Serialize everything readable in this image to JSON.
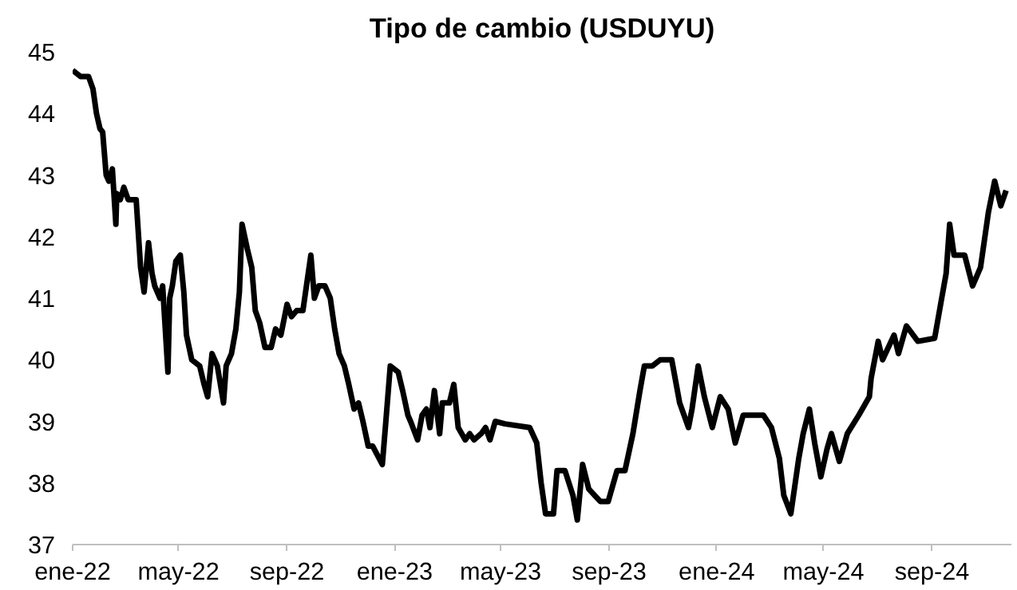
{
  "chart_data": {
    "type": "line",
    "title": "Tipo de cambio (USDUYU)",
    "x": [
      "2022-01-01",
      "2022-01-10",
      "2022-01-19",
      "2022-01-24",
      "2022-01-28",
      "2022-02-01",
      "2022-02-04",
      "2022-02-08",
      "2022-02-11",
      "2022-02-15",
      "2022-02-19",
      "2022-02-20",
      "2022-02-24",
      "2022-02-28",
      "2022-03-05",
      "2022-03-14",
      "2022-03-19",
      "2022-03-23",
      "2022-03-28",
      "2022-04-01",
      "2022-04-04",
      "2022-04-10",
      "2022-04-13",
      "2022-04-19",
      "2022-04-21",
      "2022-04-24",
      "2022-04-28",
      "2022-05-03",
      "2022-05-07",
      "2022-05-10",
      "2022-05-16",
      "2022-05-25",
      "2022-05-30",
      "2022-06-03",
      "2022-06-08",
      "2022-06-14",
      "2022-06-21",
      "2022-06-24",
      "2022-06-30",
      "2022-07-05",
      "2022-07-09",
      "2022-07-12",
      "2022-07-18",
      "2022-07-23",
      "2022-07-27",
      "2022-08-01",
      "2022-08-07",
      "2022-08-14",
      "2022-08-19",
      "2022-08-25",
      "2022-09-01",
      "2022-09-06",
      "2022-09-12",
      "2022-09-19",
      "2022-09-24",
      "2022-09-28",
      "2022-10-02",
      "2022-10-07",
      "2022-10-14",
      "2022-10-20",
      "2022-10-25",
      "2022-10-30",
      "2022-11-05",
      "2022-11-10",
      "2022-11-16",
      "2022-11-21",
      "2022-11-26",
      "2022-12-02",
      "2022-12-07",
      "2022-12-18",
      "2022-12-22",
      "2022-12-27",
      "2023-01-05",
      "2023-01-10",
      "2023-01-16",
      "2023-01-19",
      "2023-01-27",
      "2023-02-01",
      "2023-02-06",
      "2023-02-10",
      "2023-02-15",
      "2023-02-21",
      "2023-02-24",
      "2023-03-04",
      "2023-03-09",
      "2023-03-14",
      "2023-03-22",
      "2023-03-27",
      "2023-04-01",
      "2023-04-09",
      "2023-04-14",
      "2023-04-19",
      "2023-04-25",
      "2023-05-06",
      "2023-06-03",
      "2023-06-11",
      "2023-06-16",
      "2023-06-21",
      "2023-06-30",
      "2023-07-04",
      "2023-07-13",
      "2023-07-22",
      "2023-07-27",
      "2023-08-02",
      "2023-08-09",
      "2023-08-22",
      "2023-08-31",
      "2023-09-10",
      "2023-09-19",
      "2023-09-28",
      "2023-10-06",
      "2023-10-11",
      "2023-10-20",
      "2023-10-29",
      "2023-11-11",
      "2023-11-20",
      "2023-11-30",
      "2023-12-04",
      "2023-12-11",
      "2023-12-18",
      "2023-12-27",
      "2024-01-05",
      "2024-01-14",
      "2024-01-22",
      "2024-01-31",
      "2024-02-10",
      "2024-02-23",
      "2024-03-03",
      "2024-03-12",
      "2024-03-17",
      "2024-03-25",
      "2024-04-03",
      "2024-04-08",
      "2024-04-15",
      "2024-04-21",
      "2024-04-28",
      "2024-05-05",
      "2024-05-10",
      "2024-05-19",
      "2024-05-28",
      "2024-06-10",
      "2024-06-22",
      "2024-06-24",
      "2024-07-02",
      "2024-07-07",
      "2024-07-20",
      "2024-07-25",
      "2024-08-03",
      "2024-08-16",
      "2024-09-04",
      "2024-09-12",
      "2024-09-17",
      "2024-09-21",
      "2024-09-26",
      "2024-10-08",
      "2024-10-17",
      "2024-10-26",
      "2024-11-04",
      "2024-11-11",
      "2024-11-18",
      "2024-11-24"
    ],
    "series": [
      {
        "color": "#000000",
        "values": [
          44.7,
          44.6,
          44.6,
          44.4,
          44.0,
          43.75,
          43.7,
          43.0,
          42.9,
          43.1,
          42.2,
          42.7,
          42.6,
          42.8,
          42.6,
          42.6,
          41.5,
          41.1,
          41.9,
          41.4,
          41.2,
          41.0,
          41.2,
          39.8,
          41.0,
          41.2,
          41.6,
          41.7,
          41.1,
          40.4,
          40.0,
          39.9,
          39.6,
          39.4,
          40.1,
          39.9,
          39.3,
          39.9,
          40.1,
          40.5,
          41.1,
          42.2,
          41.8,
          41.5,
          40.8,
          40.6,
          40.2,
          40.2,
          40.5,
          40.4,
          40.9,
          40.7,
          40.8,
          40.8,
          41.3,
          41.7,
          41.0,
          41.2,
          41.2,
          41.0,
          40.5,
          40.1,
          39.9,
          39.6,
          39.2,
          39.3,
          39.0,
          38.6,
          38.6,
          38.3,
          39.0,
          39.9,
          39.8,
          39.5,
          39.1,
          39.0,
          38.7,
          39.1,
          39.2,
          38.9,
          39.5,
          38.8,
          39.3,
          39.3,
          39.6,
          38.9,
          38.7,
          38.8,
          38.7,
          38.8,
          38.9,
          38.7,
          39.0,
          38.96,
          38.9,
          38.65,
          38.0,
          37.5,
          37.5,
          38.2,
          38.2,
          37.8,
          37.4,
          38.3,
          37.9,
          37.7,
          37.7,
          38.2,
          38.2,
          38.8,
          39.5,
          39.9,
          39.9,
          40.0,
          40.0,
          39.3,
          38.9,
          39.2,
          39.9,
          39.4,
          38.9,
          39.4,
          39.2,
          38.65,
          39.1,
          39.1,
          39.1,
          38.9,
          38.4,
          37.8,
          37.5,
          38.4,
          38.8,
          39.2,
          38.65,
          38.1,
          38.55,
          38.8,
          38.35,
          38.8,
          39.1,
          39.4,
          39.7,
          40.3,
          40.0,
          40.4,
          40.1,
          40.55,
          40.3,
          40.35,
          41.0,
          41.4,
          42.2,
          41.7,
          41.7,
          41.2,
          41.5,
          42.4,
          42.9,
          42.5,
          42.75
        ]
      }
    ],
    "xlim": [
      "2022-01-01",
      "2024-11-30"
    ],
    "xticks": [
      {
        "value": "2022-01-01",
        "label": "ene-22"
      },
      {
        "value": "2022-05-01",
        "label": "may-22"
      },
      {
        "value": "2022-09-01",
        "label": "sep-22"
      },
      {
        "value": "2023-01-01",
        "label": "ene-23"
      },
      {
        "value": "2023-05-01",
        "label": "may-23"
      },
      {
        "value": "2023-09-01",
        "label": "sep-23"
      },
      {
        "value": "2024-01-01",
        "label": "ene-24"
      },
      {
        "value": "2024-05-01",
        "label": "may-24"
      },
      {
        "value": "2024-09-01",
        "label": "sep-24"
      }
    ],
    "ylim": [
      37,
      45
    ],
    "yticks": [
      37,
      38,
      39,
      40,
      41,
      42,
      43,
      44,
      45
    ],
    "grid": false,
    "marker": "none",
    "line_style": "solid"
  }
}
